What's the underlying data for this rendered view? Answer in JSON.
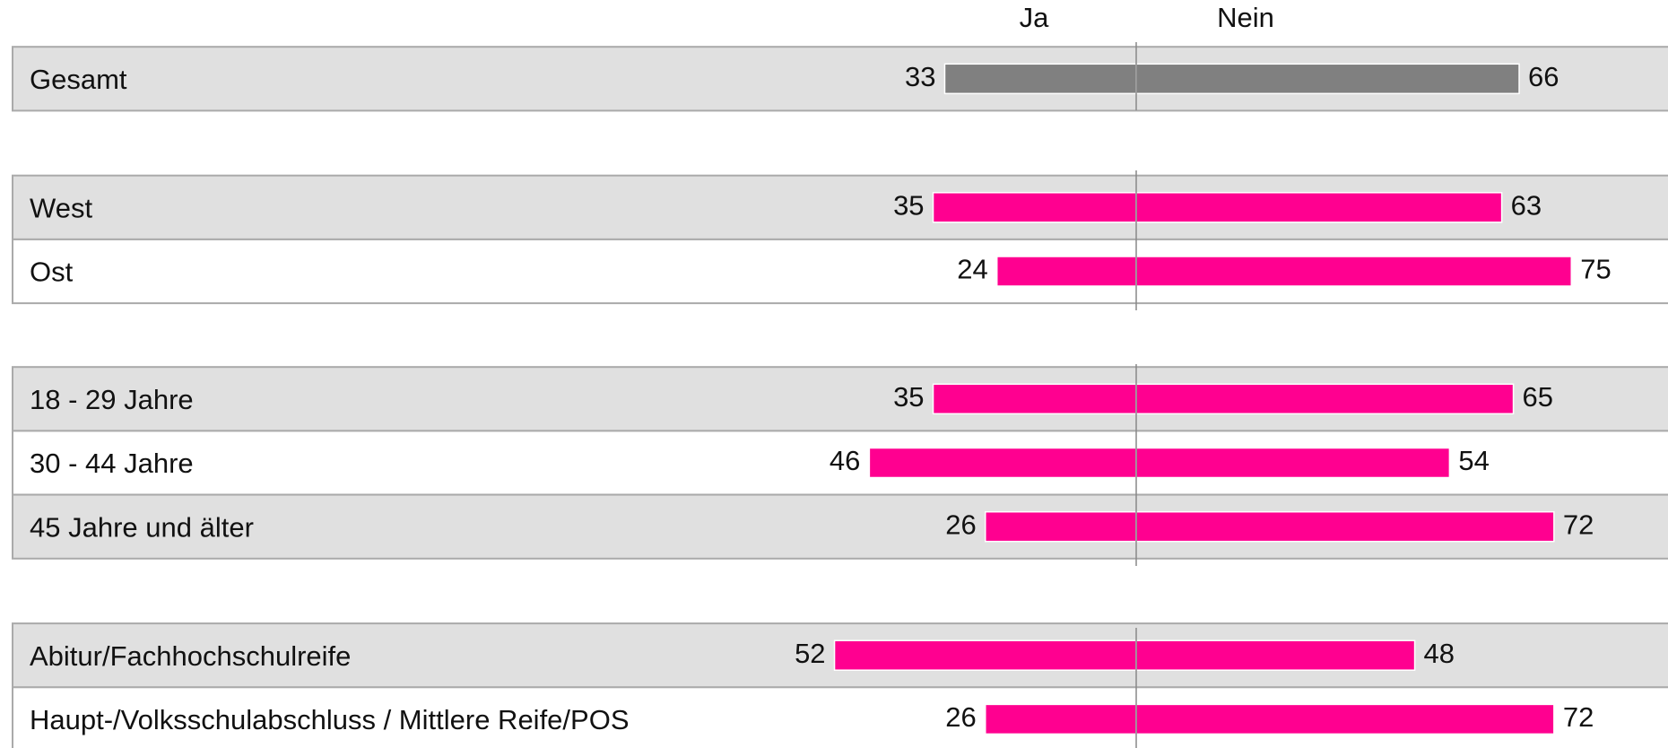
{
  "chart_data": {
    "type": "diverging_bar",
    "categories": [
      "Gesamt",
      "West",
      "Ost",
      "18 - 29 Jahre",
      "30 - 44 Jahre",
      "45 Jahre und älter",
      "Abitur/Fachhochschulreife",
      "Haupt-/Volksschulabschluss / Mittlere Reife/POS"
    ],
    "colors": [
      "#808080",
      "#ff0090",
      "#ff0090",
      "#ff0090",
      "#ff0090",
      "#ff0090",
      "#ff0090",
      "#ff0090"
    ],
    "series": [
      {
        "name": "Ja",
        "values": [
          33,
          35,
          24,
          35,
          46,
          26,
          52,
          26
        ]
      },
      {
        "name": "Nein",
        "values": [
          66,
          63,
          75,
          65,
          54,
          72,
          48,
          72
        ]
      }
    ]
  }
}
